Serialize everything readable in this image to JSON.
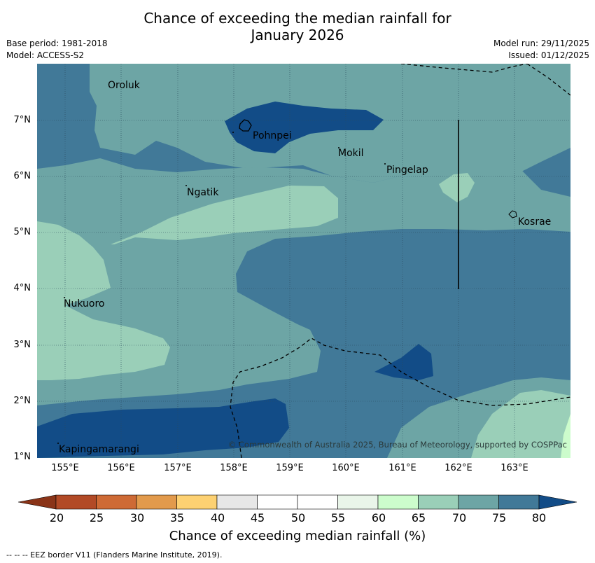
{
  "title_line1": "Chance of exceeding the median rainfall for",
  "title_line2": "January 2026",
  "meta": {
    "base_period": "Base period: 1981-2018",
    "model": "Model: ACCESS-S2",
    "model_run": "Model run: 29/11/2025",
    "issued": "Issued: 01/12/2025"
  },
  "axes": {
    "lat_labels": [
      "7°N",
      "6°N",
      "5°N",
      "4°N",
      "3°N",
      "2°N",
      "1°N"
    ],
    "lon_labels": [
      "155°E",
      "156°E",
      "157°E",
      "158°E",
      "159°E",
      "160°E",
      "161°E",
      "162°E",
      "163°E"
    ]
  },
  "places": [
    "Oroluk",
    "Pohnpei",
    "Mokil",
    "Pingelap",
    "Ngatik",
    "Kosrae",
    "Nukuoro",
    "Kapingamarangi"
  ],
  "copyright": "© Commonwealth of Australia 2025, Bureau of Meteorology, supported by COSPPac",
  "colorbar": {
    "labels": [
      "20",
      "25",
      "30",
      "35",
      "40",
      "45",
      "50",
      "55",
      "60",
      "65",
      "70",
      "75",
      "80"
    ],
    "colors": [
      "#b24a26",
      "#ce6a35",
      "#e29a4c",
      "#fdd172",
      "#e7e7e7",
      "#ffffff",
      "#ffffff",
      "#e9f5e9",
      "#ccfccc",
      "#9acfb8",
      "#6da5a5",
      "#417998",
      "#124c87"
    ],
    "under_color": "#8a3418",
    "over_color": "#124c87",
    "title": "Chance of exceeding median rainfall (%)"
  },
  "footer": "--  --  -- EEZ border V11 (Flanders Marine Institute, 2019)."
}
